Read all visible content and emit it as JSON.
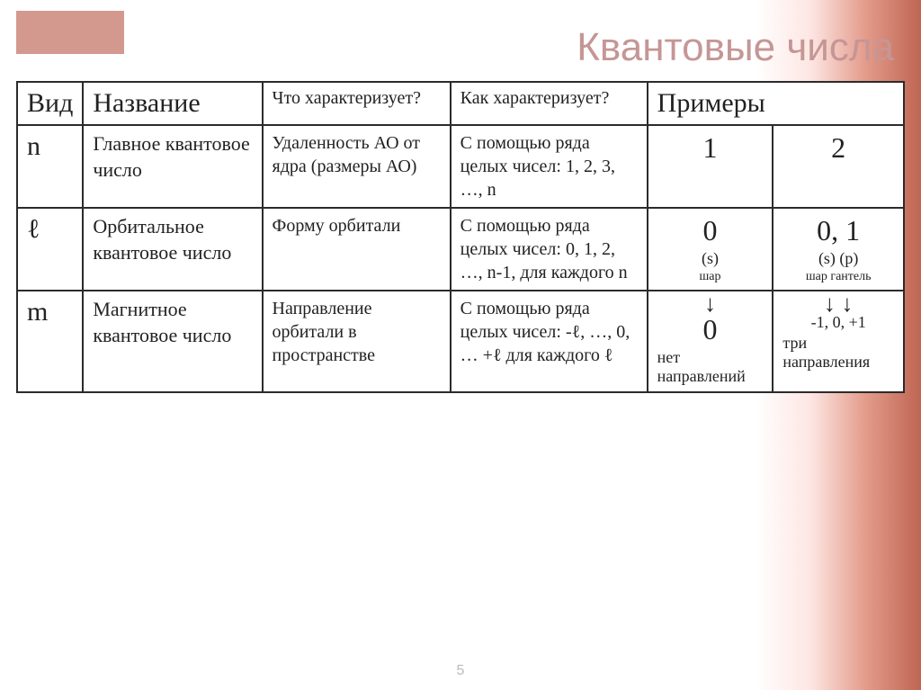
{
  "title": "Квантовые числа",
  "page_number": "5",
  "colors": {
    "title_color": "#c59696",
    "accent_bar": "#d3998f",
    "border": "#2b2b2b",
    "gradient_stops": [
      "#ffffff",
      "#fde6e3",
      "#e39b8a",
      "#bf6553"
    ]
  },
  "columns": {
    "kind": "Вид",
    "name": "Название",
    "what": "Что характеризует?",
    "how": "Как характеризует?",
    "examples": "Примеры"
  },
  "rows": [
    {
      "symbol": "n",
      "name": "Главное квантовое число",
      "what": "Удаленность АО от ядра (размеры АО)",
      "how": "С помощью ряда целых чисел:\n1, 2, 3, …, n",
      "example_a": {
        "main": "1"
      },
      "example_b": {
        "main": "2"
      }
    },
    {
      "symbol": "ℓ",
      "name": "Орбитальное квантовое число",
      "what": "Форму орбитали",
      "how": "С помощью ряда целых чисел:\n0, 1, 2, …, n-1, для каждого n",
      "example_a": {
        "main": "0",
        "sub": "(s)",
        "note": "шар"
      },
      "example_b": {
        "main": "0, 1",
        "sub": "(s) (p)",
        "note": "шар  гантель"
      }
    },
    {
      "symbol": "m",
      "name": "Магнитное квантовое число",
      "what": "Направление орбитали в пространстве",
      "how": "С помощью ряда целых чисел:\n-ℓ, …, 0, … +ℓ для каждого ℓ",
      "example_a": {
        "arrow": "↓",
        "main": "0",
        "sub": "нет направлений"
      },
      "example_b": {
        "arrow": "↓   ↓",
        "main": "-1,  0, +1",
        "sub": "три направления"
      }
    }
  ]
}
